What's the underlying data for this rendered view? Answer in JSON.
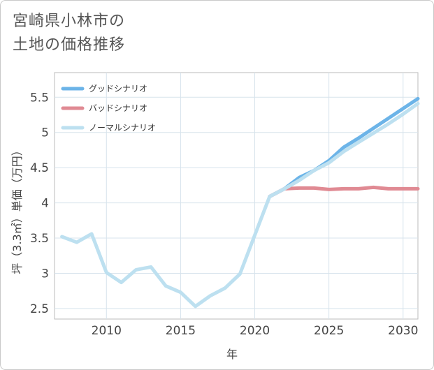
{
  "title_lines": [
    "宮崎県小林市の",
    "土地の価格推移"
  ],
  "chart_data": {
    "type": "line",
    "title": "宮崎県小林市の土地の価格推移",
    "xlabel": "年",
    "ylabel": "坪（3.3㎡）単価（万円）",
    "xlim": [
      2006.5,
      2031
    ],
    "ylim": [
      2.35,
      5.85
    ],
    "x_ticks": [
      2010,
      2015,
      2020,
      2025,
      2030
    ],
    "y_ticks": [
      2.5,
      3,
      3.5,
      4,
      4.5,
      5,
      5.5
    ],
    "grid": true,
    "legend_position": "top-left",
    "series": [
      {
        "name": "グッドシナリオ",
        "color": "#6cb4e8",
        "points": [
          [
            2021,
            4.09
          ],
          [
            2022,
            4.2
          ],
          [
            2023,
            4.36
          ],
          [
            2024,
            4.46
          ],
          [
            2025,
            4.6
          ],
          [
            2026,
            4.79
          ],
          [
            2027,
            4.92
          ],
          [
            2028,
            5.06
          ],
          [
            2029,
            5.2
          ],
          [
            2030,
            5.34
          ],
          [
            2031,
            5.48
          ]
        ]
      },
      {
        "name": "バッドシナリオ",
        "color": "#e08a93",
        "points": [
          [
            2021,
            4.09
          ],
          [
            2022,
            4.2
          ],
          [
            2023,
            4.21
          ],
          [
            2024,
            4.21
          ],
          [
            2025,
            4.19
          ],
          [
            2026,
            4.2
          ],
          [
            2027,
            4.2
          ],
          [
            2028,
            4.22
          ],
          [
            2029,
            4.2
          ],
          [
            2030,
            4.2
          ],
          [
            2031,
            4.2
          ]
        ]
      },
      {
        "name": "ノーマルシナリオ",
        "color": "#bde0f0",
        "points": [
          [
            2007,
            3.52
          ],
          [
            2008,
            3.44
          ],
          [
            2009,
            3.56
          ],
          [
            2010,
            3.01
          ],
          [
            2011,
            2.87
          ],
          [
            2012,
            3.05
          ],
          [
            2013,
            3.09
          ],
          [
            2014,
            2.82
          ],
          [
            2015,
            2.73
          ],
          [
            2016,
            2.53
          ],
          [
            2017,
            2.68
          ],
          [
            2018,
            2.79
          ],
          [
            2019,
            2.99
          ],
          [
            2020,
            3.54
          ],
          [
            2021,
            4.09
          ],
          [
            2022,
            4.2
          ],
          [
            2023,
            4.32
          ],
          [
            2024,
            4.46
          ],
          [
            2025,
            4.57
          ],
          [
            2026,
            4.73
          ],
          [
            2027,
            4.86
          ],
          [
            2028,
            4.99
          ],
          [
            2029,
            5.12
          ],
          [
            2030,
            5.26
          ],
          [
            2031,
            5.41
          ]
        ]
      }
    ]
  }
}
